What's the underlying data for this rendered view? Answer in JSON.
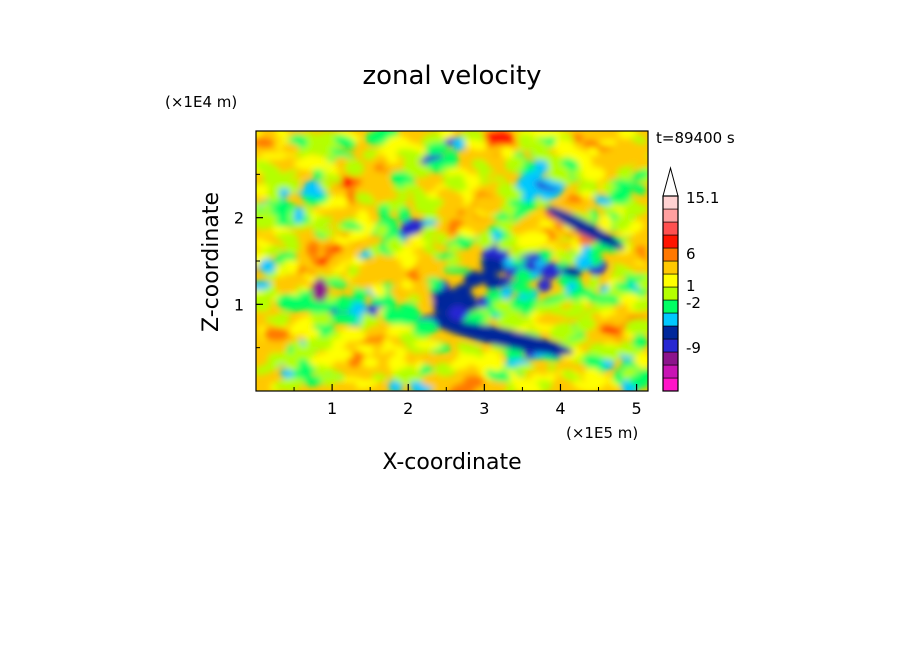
{
  "chart_data": {
    "type": "heatmap",
    "title": "zonal velocity",
    "xlabel": "X-coordinate",
    "ylabel": "Z-coordinate",
    "x_unit": "(×1E5 m)",
    "y_unit": "(×1E4 m)",
    "time_label": "t=89400 s",
    "x_ticks": [
      "1",
      "2",
      "3",
      "4",
      "5"
    ],
    "y_ticks": [
      "1",
      "2"
    ],
    "xlim": [
      0,
      5.15
    ],
    "ylim": [
      0,
      3.0
    ],
    "colorbar": {
      "labels": [
        "15.1",
        "6",
        "1",
        "-2",
        "-9"
      ],
      "levels_colors": [
        "#ff14c8",
        "#c814b4",
        "#8c148c",
        "#2828d2",
        "#00289b",
        "#00c8ff",
        "#00ff64",
        "#b4ff00",
        "#ffff00",
        "#ffc800",
        "#ff7800",
        "#ff1400",
        "#ff5050",
        "#ffa0a0",
        "#ffd2d2"
      ]
    }
  }
}
